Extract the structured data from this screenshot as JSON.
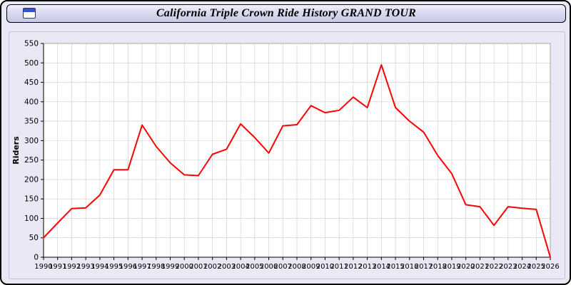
{
  "window": {
    "title": "California Triple Crown Ride History GRAND TOUR",
    "icon": "window-chart-icon"
  },
  "colors": {
    "line": "#ff0000",
    "plot_background": "#ffffff",
    "panel_background": "#e9e9f6",
    "grid": "#cccccc",
    "axis": "#000000",
    "tick_label": "#000000"
  },
  "chart_data": {
    "type": "line",
    "title": "California Triple Crown Ride History GRAND TOUR",
    "xlabel": "",
    "ylabel": "Riders",
    "ylim": [
      0,
      550
    ],
    "y_tick_step": 50,
    "grid": true,
    "legend_position": "none",
    "x": [
      1990,
      1991,
      1992,
      1993,
      1994,
      1995,
      1996,
      1997,
      1998,
      1999,
      2000,
      2001,
      2002,
      2003,
      2004,
      2005,
      2006,
      2007,
      2008,
      2009,
      2010,
      2011,
      2012,
      2013,
      2014,
      2015,
      2016,
      2017,
      2018,
      2019,
      2020,
      2021,
      2022,
      2023,
      2024,
      2025,
      2026
    ],
    "series": [
      {
        "name": "Riders",
        "color": "#ff0000",
        "values": [
          50,
          88,
          125,
          127,
          160,
          225,
          225,
          340,
          285,
          243,
          212,
          210,
          265,
          278,
          343,
          308,
          268,
          338,
          341,
          390,
          372,
          378,
          412,
          385,
          495,
          385,
          350,
          322,
          262,
          215,
          135,
          130,
          82,
          130,
          126,
          123,
          0
        ]
      }
    ]
  }
}
